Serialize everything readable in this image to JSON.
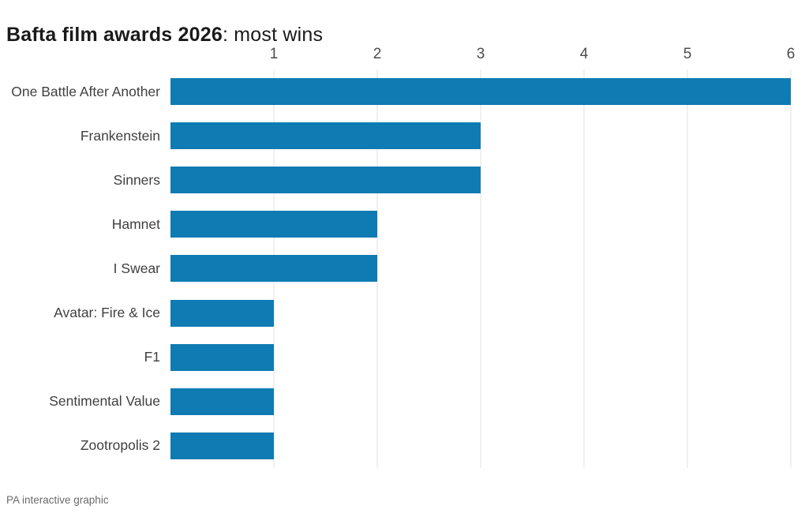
{
  "title": {
    "bold": "Bafta film awards 2026",
    "rest": ": most wins"
  },
  "footer": {
    "source": "PA interactive graphic"
  },
  "chart_data": {
    "type": "bar",
    "orientation": "horizontal",
    "title": "Bafta film awards 2026: most wins",
    "categories": [
      "One Battle After Another",
      "Frankenstein",
      "Sinners",
      "Hamnet",
      "I Swear",
      "Avatar: Fire & Ice",
      "F1",
      "Sentimental Value",
      "Zootropolis 2"
    ],
    "values": [
      6,
      3,
      3,
      2,
      2,
      1,
      1,
      1,
      1
    ],
    "xlabel": "",
    "ylabel": "",
    "xticks": [
      1,
      2,
      3,
      4,
      5,
      6
    ],
    "xlim": [
      0,
      6
    ],
    "grid": "vertical",
    "legend": "none",
    "bar_color": "#0e7bb2",
    "gridline_color": "#e0e0e0"
  }
}
